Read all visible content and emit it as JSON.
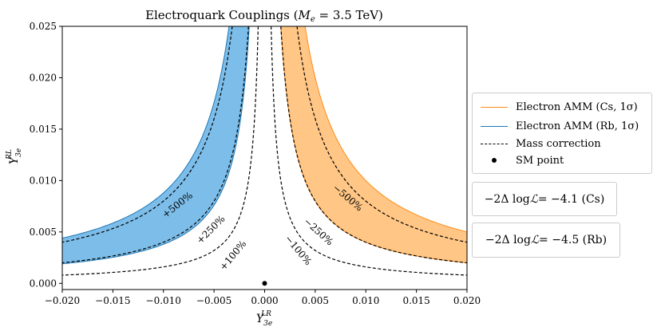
{
  "chart_data": {
    "type": "area",
    "title_text": "Electroquark Couplings (",
    "title_math": "M",
    "title_sub": "e",
    "title_tail": " = 3.5 TeV)",
    "xlabel_main": "Y",
    "xlabel_sub": "3e",
    "xlabel_sup": "LR",
    "ylabel_main": "Y",
    "ylabel_sub": "3e",
    "ylabel_sup": "RL",
    "xlim": [
      -0.02,
      0.02
    ],
    "ylim": [
      -0.0006,
      0.025
    ],
    "xticks": [
      -0.02,
      -0.015,
      -0.01,
      -0.005,
      0.0,
      0.005,
      0.01,
      0.015,
      0.02
    ],
    "xtick_labels": [
      "−0.020",
      "−0.015",
      "−0.010",
      "−0.005",
      "0.000",
      "0.005",
      "0.010",
      "0.015",
      "0.020"
    ],
    "yticks": [
      0.0,
      0.005,
      0.01,
      0.015,
      0.02,
      0.025
    ],
    "ytick_labels": [
      "0.000",
      "0.005",
      "0.010",
      "0.015",
      "0.020",
      "0.025"
    ],
    "grid": false,
    "bands": [
      {
        "name": "Electron AMM (Rb, 1σ)",
        "color": "#1f77b4",
        "fill": "#7dbde9",
        "side": "negative",
        "k_inner": 3.8e-05,
        "k_outer": 8.8e-05
      },
      {
        "name": "Electron AMM (Cs, 1σ)",
        "color": "#ff8c1a",
        "fill": "#ffc685",
        "side": "positive",
        "k_inner": 4e-05,
        "k_outer": 0.0001
      }
    ],
    "mass_curves": [
      {
        "label": "+100%",
        "side": "negative",
        "k": 1.6e-05
      },
      {
        "label": "+250%",
        "side": "negative",
        "k": 4e-05
      },
      {
        "label": "+500%",
        "side": "negative",
        "k": 8e-05
      },
      {
        "label": "−100%",
        "side": "positive",
        "k": 1.6e-05
      },
      {
        "label": "−250%",
        "side": "positive",
        "k": 4e-05
      },
      {
        "label": "−500%",
        "side": "positive",
        "k": 8e-05
      }
    ],
    "curve_labels": [
      {
        "text": "+500%",
        "x": -0.0086,
        "y": 0.0076,
        "angle": -38
      },
      {
        "text": "+250%",
        "x": -0.0053,
        "y": 0.0052,
        "angle": -45
      },
      {
        "text": "+100%",
        "x": -0.0031,
        "y": 0.0027,
        "angle": -50
      },
      {
        "text": "−500%",
        "x": 0.0082,
        "y": 0.0083,
        "angle": 40
      },
      {
        "text": "−250%",
        "x": 0.0053,
        "y": 0.005,
        "angle": 42
      },
      {
        "text": "−100%",
        "x": 0.0033,
        "y": 0.0032,
        "angle": 50
      }
    ],
    "sm_point": {
      "x": 0.0,
      "y": 0.0
    },
    "legend": {
      "placement": "right",
      "entries": [
        {
          "label": "Electron AMM (Cs, 1σ)",
          "style": "line",
          "color": "#ff8c1a"
        },
        {
          "label": "Electron AMM (Rb, 1σ)",
          "style": "line",
          "color": "#1f77b4"
        },
        {
          "label": "Mass correction",
          "style": "dashed",
          "color": "#000000"
        },
        {
          "label": "SM point",
          "style": "dot",
          "color": "#000000"
        }
      ]
    },
    "likelihood_boxes": [
      {
        "prefix": "−2Δ log ",
        "script": "ℒ",
        "value": " = −4.1 (Cs)"
      },
      {
        "prefix": "−2Δ log ",
        "script": "ℒ",
        "value": " = −4.5 (Rb)"
      }
    ]
  }
}
